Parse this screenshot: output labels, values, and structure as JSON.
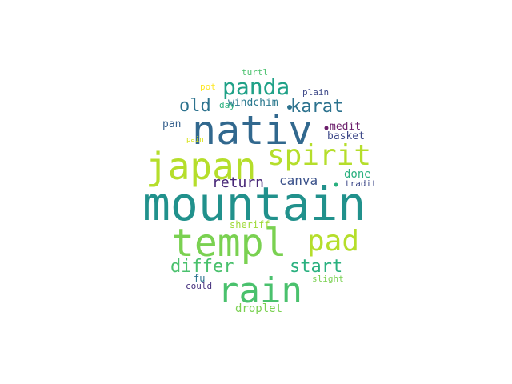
{
  "word_cloud": {
    "words": [
      {
        "text": "mountain",
        "color": "#21918c"
      },
      {
        "text": "nativ",
        "color": "#31688e"
      },
      {
        "text": "templ",
        "color": "#7ad151"
      },
      {
        "text": "japan",
        "color": "#b5de2b"
      },
      {
        "text": "rain",
        "color": "#4ac16d"
      },
      {
        "text": "spirit",
        "color": "#b5de2b"
      },
      {
        "text": "pad",
        "color": "#b5de2b"
      },
      {
        "text": "panda",
        "color": "#1fa187"
      },
      {
        "text": "differ",
        "color": "#4ac16d"
      },
      {
        "text": "start",
        "color": "#2ab07f"
      },
      {
        "text": "karat",
        "color": "#2c728e"
      },
      {
        "text": "old",
        "color": "#2c728e"
      },
      {
        "text": "return",
        "color": "#482878"
      },
      {
        "text": "canva",
        "color": "#3b528b"
      },
      {
        "text": "done",
        "color": "#2ab07f"
      },
      {
        "text": "droplet",
        "color": "#7ad151"
      },
      {
        "text": "medit",
        "color": "#6b1e6b"
      },
      {
        "text": "basket",
        "color": "#3e4989"
      },
      {
        "text": "windchim",
        "color": "#2a788e"
      },
      {
        "text": "plain",
        "color": "#3e4989"
      },
      {
        "text": "pan",
        "color": "#35608d"
      },
      {
        "text": "tradit",
        "color": "#3e4989"
      },
      {
        "text": "sheriff",
        "color": "#a0da39"
      },
      {
        "text": "fu",
        "color": "#2c728e"
      },
      {
        "text": "slight",
        "color": "#7ad151"
      },
      {
        "text": "could",
        "color": "#46327e"
      },
      {
        "text": "turtl",
        "color": "#4ac16d"
      },
      {
        "text": "pot",
        "color": "#fde725"
      },
      {
        "text": "day",
        "color": "#2ab07f"
      },
      {
        "text": "pain",
        "color": "#d8e219"
      }
    ]
  }
}
